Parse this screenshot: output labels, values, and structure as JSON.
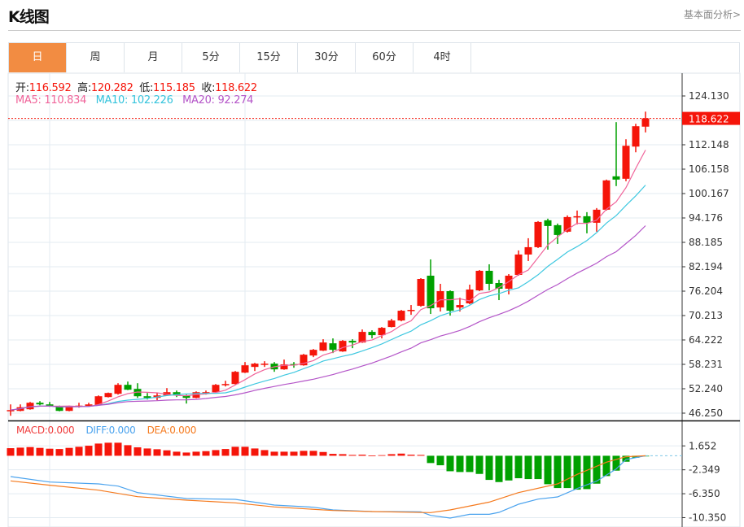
{
  "header": {
    "title": "K线图",
    "fundamental_link": "基本面分析>"
  },
  "tabs": [
    {
      "label": "日",
      "active": true
    },
    {
      "label": "周"
    },
    {
      "label": "月"
    },
    {
      "label": "5分"
    },
    {
      "label": "15分"
    },
    {
      "label": "30分"
    },
    {
      "label": "60分"
    },
    {
      "label": "4时"
    }
  ],
  "ohlc_info": {
    "open_label": "开:",
    "open": "116.592",
    "high_label": "高:",
    "high": "120.282",
    "low_label": "低:",
    "low": "115.185",
    "close_label": "收:",
    "close": "118.622"
  },
  "ma_info": {
    "ma5": "MA5: 110.834",
    "ma10": "MA10: 102.226",
    "ma20": "MA20: 92.274"
  },
  "macd_info": {
    "macd": "MACD:0.000",
    "diff": "DIFF:0.000",
    "dea": "DEA:0.000"
  },
  "colors": {
    "up": "#f5150a",
    "down": "#00a000",
    "ma5": "#f0649a",
    "ma10": "#3fc8e0",
    "ma20": "#b455c8",
    "diff": "#4ba3ee",
    "dea": "#f57a1e",
    "tab_active": "#f28c42"
  },
  "chart_data": [
    {
      "type": "candlestick",
      "price_axis_ticks": [
        "124.130",
        "112.148",
        "106.158",
        "100.167",
        "94.176",
        "88.185",
        "82.194",
        "76.204",
        "70.213",
        "64.222",
        "58.231",
        "52.240",
        "46.250"
      ],
      "ylim": [
        46.25,
        124.13
      ],
      "last_price": "118.622",
      "ohlc": [
        [
          46.9,
          48.4,
          45.6,
          47.0
        ],
        [
          46.8,
          48.4,
          46.7,
          47.7
        ],
        [
          47.2,
          49.0,
          47.1,
          48.8
        ],
        [
          48.8,
          49.2,
          48.2,
          48.4
        ],
        [
          48.4,
          49.0,
          47.8,
          48.0
        ],
        [
          48.0,
          48.1,
          46.7,
          46.8
        ],
        [
          46.8,
          48.1,
          46.7,
          48.0
        ],
        [
          48.0,
          48.8,
          47.6,
          48.1
        ],
        [
          48.0,
          48.8,
          47.9,
          48.4
        ],
        [
          48.2,
          50.6,
          48.1,
          50.4
        ],
        [
          50.2,
          51.3,
          50.1,
          51.2
        ],
        [
          51.0,
          53.6,
          50.8,
          53.2
        ],
        [
          53.2,
          54.0,
          51.9,
          52.0
        ],
        [
          52.2,
          53.6,
          50.0,
          50.4
        ],
        [
          50.4,
          51.2,
          49.6,
          50.0
        ],
        [
          50.0,
          51.2,
          49.4,
          50.6
        ],
        [
          50.6,
          52.4,
          50.5,
          51.4
        ],
        [
          51.4,
          51.8,
          50.2,
          50.6
        ],
        [
          50.6,
          50.8,
          48.6,
          50.0
        ],
        [
          50.0,
          51.6,
          49.9,
          51.4
        ],
        [
          51.0,
          51.8,
          50.8,
          51.4
        ],
        [
          51.4,
          53.4,
          51.3,
          53.2
        ],
        [
          53.3,
          54.2,
          52.8,
          53.4
        ],
        [
          53.4,
          56.6,
          53.3,
          56.4
        ],
        [
          56.2,
          58.8,
          56.1,
          58.0
        ],
        [
          57.6,
          58.6,
          56.6,
          58.4
        ],
        [
          58.3,
          59.0,
          57.6,
          58.4
        ],
        [
          58.4,
          58.8,
          56.4,
          57.0
        ],
        [
          57.0,
          59.4,
          56.9,
          58.2
        ],
        [
          58.3,
          58.8,
          57.4,
          58.2
        ],
        [
          58.0,
          60.8,
          57.9,
          60.6
        ],
        [
          60.4,
          62.0,
          60.0,
          61.8
        ],
        [
          61.6,
          64.4,
          61.5,
          63.6
        ],
        [
          63.4,
          64.6,
          61.0,
          61.8
        ],
        [
          61.4,
          64.2,
          61.3,
          64.0
        ],
        [
          64.0,
          64.4,
          62.2,
          63.6
        ],
        [
          63.6,
          66.8,
          63.5,
          66.2
        ],
        [
          66.2,
          66.6,
          64.6,
          65.4
        ],
        [
          65.4,
          67.4,
          64.6,
          67.2
        ],
        [
          67.4,
          69.4,
          67.3,
          69.0
        ],
        [
          69.0,
          71.6,
          68.8,
          71.4
        ],
        [
          71.4,
          72.8,
          70.4,
          71.6
        ],
        [
          72.6,
          79.4,
          72.4,
          79.2
        ],
        [
          80.0,
          84.0,
          70.6,
          72.0
        ],
        [
          72.2,
          78.0,
          71.2,
          76.2
        ],
        [
          76.2,
          76.4,
          70.2,
          71.4
        ],
        [
          72.2,
          74.6,
          71.2,
          72.8
        ],
        [
          73.2,
          77.8,
          73.0,
          76.6
        ],
        [
          76.4,
          81.4,
          76.2,
          81.2
        ],
        [
          81.2,
          82.8,
          76.4,
          78.0
        ],
        [
          78.2,
          79.0,
          74.0,
          76.8
        ],
        [
          76.8,
          80.4,
          75.4,
          80.0
        ],
        [
          80.2,
          86.2,
          80.0,
          85.2
        ],
        [
          85.2,
          89.2,
          83.6,
          87.0
        ],
        [
          87.0,
          93.4,
          86.8,
          93.2
        ],
        [
          93.6,
          94.0,
          86.4,
          92.2
        ],
        [
          92.4,
          92.8,
          87.8,
          90.0
        ],
        [
          90.8,
          94.8,
          90.6,
          94.4
        ],
        [
          94.4,
          96.0,
          92.6,
          94.6
        ],
        [
          94.6,
          95.6,
          90.4,
          93.0
        ],
        [
          93.0,
          96.6,
          90.8,
          96.2
        ],
        [
          96.2,
          103.6,
          96.0,
          103.4
        ],
        [
          104.4,
          117.7,
          102.0,
          103.6
        ],
        [
          103.8,
          113.5,
          103.2,
          111.9
        ],
        [
          111.7,
          117.3,
          110.3,
          116.7
        ],
        [
          116.592,
          120.282,
          115.185,
          118.622
        ]
      ],
      "moving_averages": [
        {
          "name": "MA5",
          "period": 5
        },
        {
          "name": "MA10",
          "period": 10
        },
        {
          "name": "MA20",
          "period": 20
        }
      ]
    },
    {
      "type": "macd",
      "axis_ticks": [
        "1.652",
        "-2.349",
        "-6.350",
        "-10.350"
      ],
      "ylim": [
        -11.1,
        3.2
      ],
      "histogram": [
        1.27,
        1.36,
        1.45,
        1.32,
        1.18,
        1.13,
        1.32,
        1.5,
        1.68,
        2.04,
        2.18,
        2.18,
        1.77,
        1.41,
        1.22,
        1.09,
        0.91,
        0.68,
        0.54,
        0.68,
        0.77,
        0.95,
        1.13,
        1.5,
        1.5,
        1.22,
        0.95,
        0.68,
        0.68,
        0.68,
        0.82,
        0.82,
        0.63,
        0.32,
        0.27,
        0.14,
        0.18,
        0.05,
        0.1,
        0.27,
        0.36,
        0.18,
        0.14,
        -1.22,
        -1.59,
        -2.59,
        -2.72,
        -2.72,
        -3.04,
        -4.04,
        -4.4,
        -4.13,
        -3.76,
        -3.9,
        -3.9,
        -4.76,
        -5.4,
        -5.4,
        -5.67,
        -5.58,
        -4.67,
        -3.4,
        -2.49,
        -1.0,
        -0.32,
        -0.09
      ],
      "diff": [
        [
          1,
          -3.48
        ],
        [
          5,
          -4.39
        ],
        [
          10,
          -4.71
        ],
        [
          12,
          -5.07
        ],
        [
          14,
          -6.16
        ],
        [
          19,
          -7.16
        ],
        [
          24,
          -7.29
        ],
        [
          28,
          -8.24
        ],
        [
          32,
          -8.61
        ],
        [
          34,
          -9.06
        ],
        [
          38,
          -9.33
        ],
        [
          43,
          -9.37
        ],
        [
          44,
          -9.97
        ],
        [
          46,
          -10.42
        ],
        [
          48,
          -9.79
        ],
        [
          50,
          -9.79
        ],
        [
          51,
          -9.47
        ],
        [
          53,
          -8.11
        ],
        [
          55,
          -7.25
        ],
        [
          57,
          -6.88
        ],
        [
          59,
          -5.48
        ],
        [
          61,
          -4.25
        ],
        [
          63,
          -2.21
        ],
        [
          64,
          -0.63
        ],
        [
          66,
          0.0
        ]
      ],
      "dea": [
        [
          1,
          -4.21
        ],
        [
          5,
          -4.93
        ],
        [
          10,
          -5.75
        ],
        [
          14,
          -6.84
        ],
        [
          19,
          -7.43
        ],
        [
          24,
          -7.88
        ],
        [
          28,
          -8.56
        ],
        [
          34,
          -9.15
        ],
        [
          38,
          -9.33
        ],
        [
          44,
          -9.51
        ],
        [
          46,
          -9.06
        ],
        [
          50,
          -7.75
        ],
        [
          53,
          -6.16
        ],
        [
          57,
          -4.71
        ],
        [
          59,
          -3.12
        ],
        [
          62,
          -1.08
        ],
        [
          64,
          -0.17
        ],
        [
          66,
          0.0
        ]
      ]
    }
  ]
}
